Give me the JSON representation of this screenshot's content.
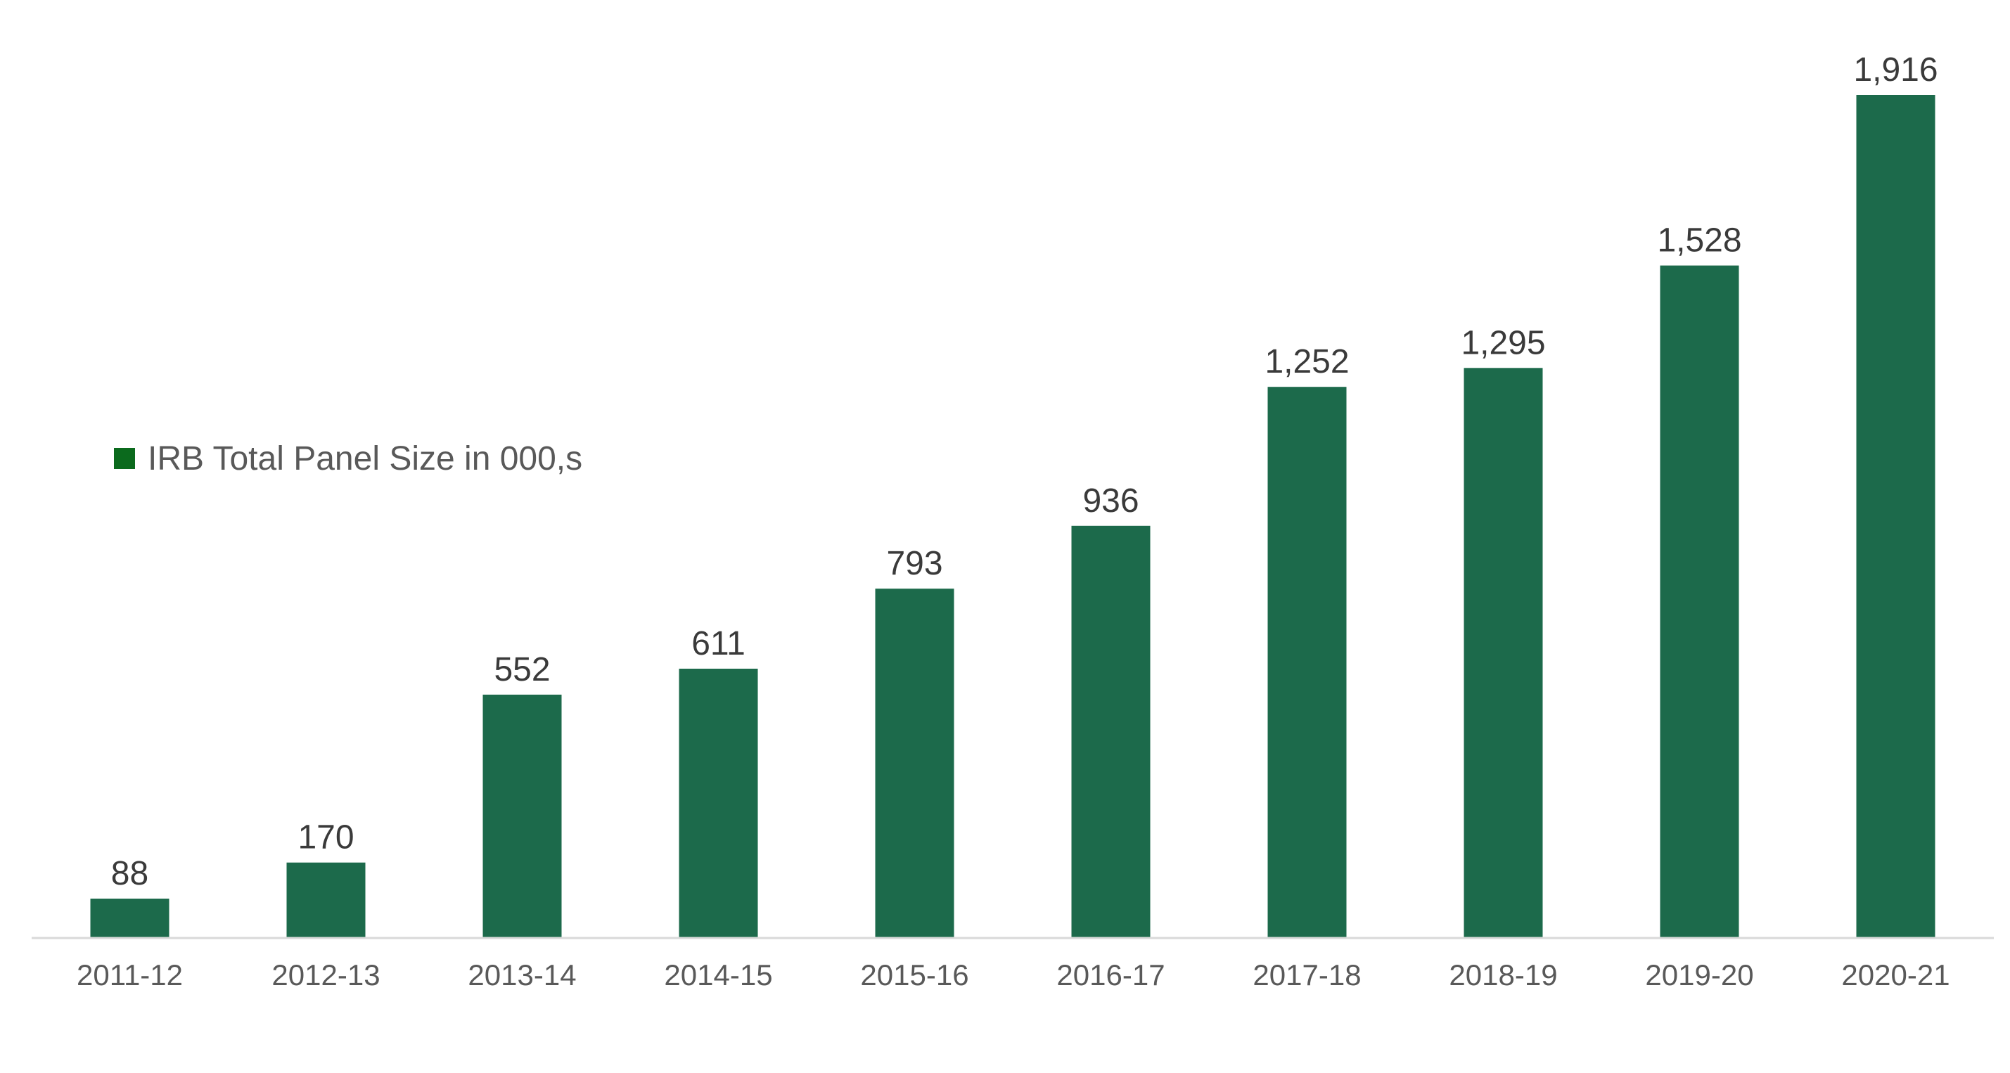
{
  "chart_data": {
    "type": "bar",
    "categories": [
      "2011-12",
      "2012-13",
      "2013-14",
      "2014-15",
      "2015-16",
      "2016-17",
      "2017-18",
      "2018-19",
      "2019-20",
      "2020-21"
    ],
    "series": [
      {
        "name": "IRB Total Panel Size in 000,s",
        "values": [
          88,
          170,
          552,
          611,
          793,
          936,
          1252,
          1295,
          1528,
          1916
        ],
        "value_labels": [
          "88",
          "170",
          "552",
          "611",
          "793",
          "936",
          "1,252",
          "1,295",
          "1,528",
          "1,916"
        ]
      }
    ],
    "ylim": [
      0,
      1916
    ],
    "grid": false,
    "legend": "left-middle"
  },
  "colors": {
    "bar": "#1c6a4b",
    "legend_marker": "#0b6a1d",
    "text": "#3a3a3a",
    "tick_text": "#595959",
    "axis": "#d9d9d9"
  }
}
